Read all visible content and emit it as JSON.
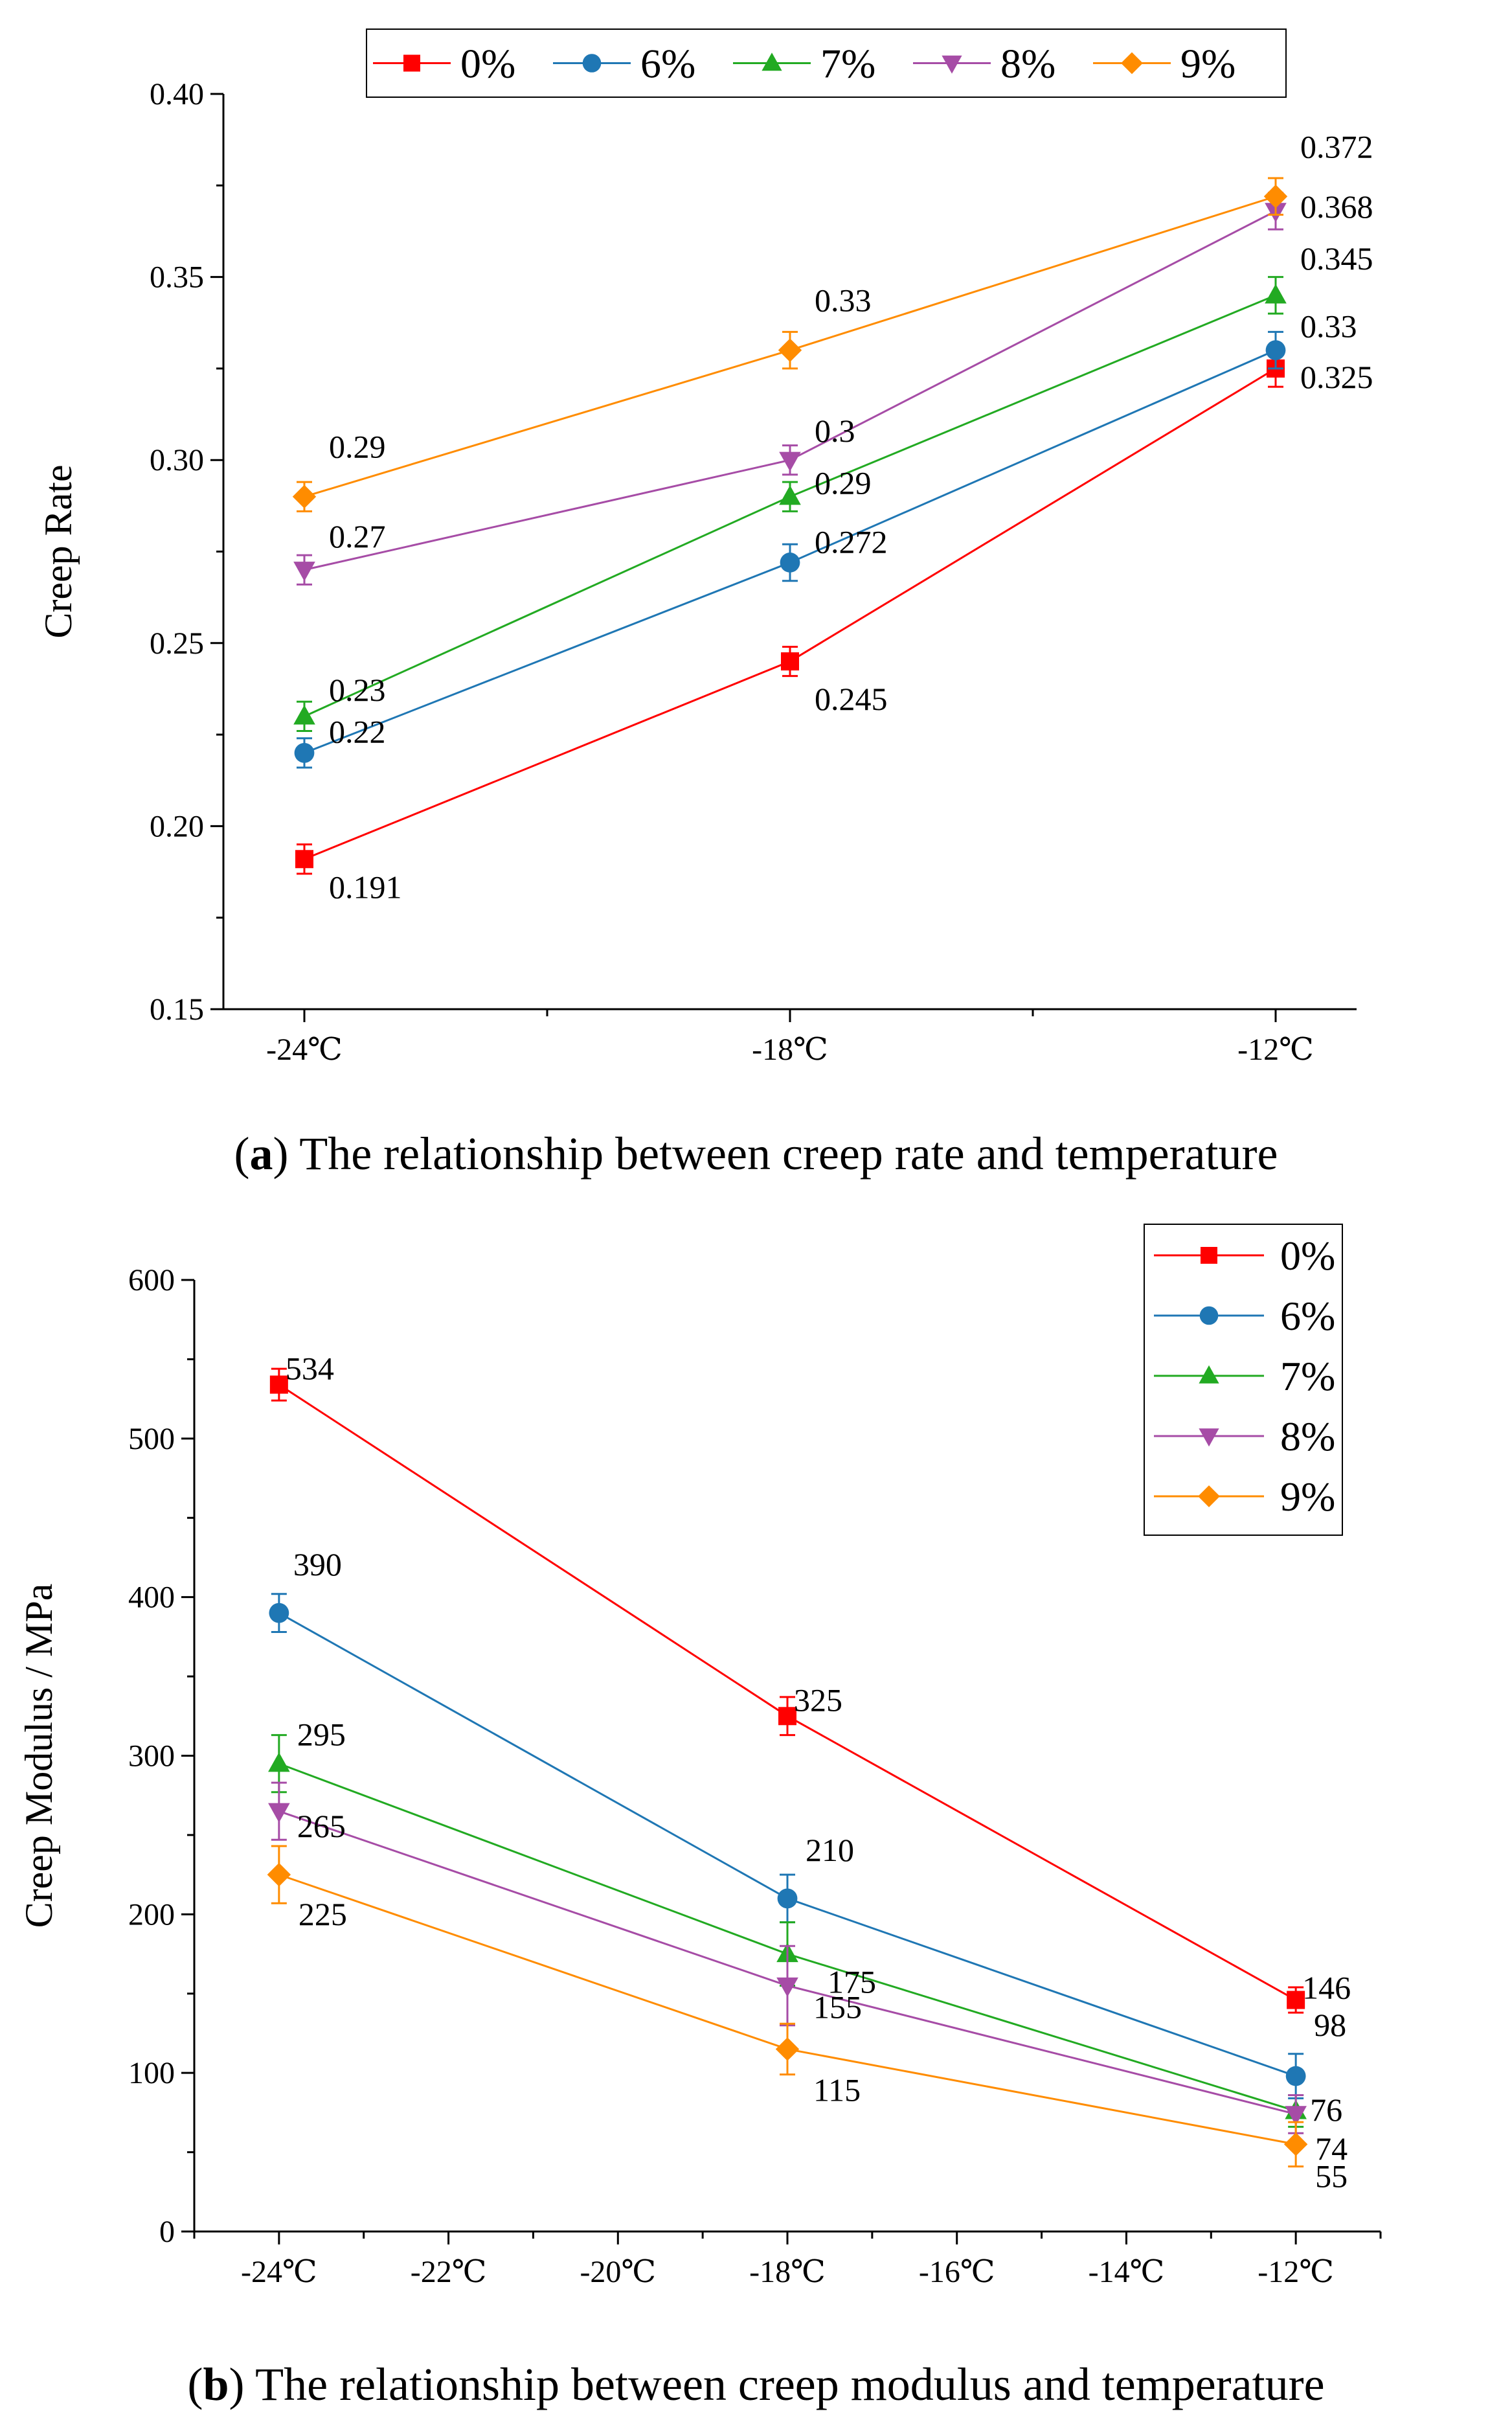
{
  "colors": {
    "0%": "#ff0000",
    "6%": "#1f77b4",
    "7%": "#22aa22",
    "8%": "#a64ca6",
    "9%": "#ff8c00"
  },
  "chart_data": [
    {
      "type": "line",
      "id": "a",
      "title": "",
      "ylabel": "Creep Rate",
      "xlabel": "",
      "categories": [
        "-24℃",
        "-18℃",
        "-12℃"
      ],
      "x": [
        -24,
        -18,
        -12
      ],
      "xlim": [
        -25,
        -11
      ],
      "xticks": [
        -24,
        -18,
        -12
      ],
      "ylim": [
        0.15,
        0.4
      ],
      "yticks": [
        0.15,
        0.2,
        0.25,
        0.3,
        0.35,
        0.4
      ],
      "ytick_labels": [
        "0.15",
        "0.20",
        "0.25",
        "0.30",
        "0.35",
        "0.40"
      ],
      "legend_position": "top",
      "series": [
        {
          "name": "0%",
          "marker": "square",
          "values": [
            0.191,
            0.245,
            0.325
          ],
          "labels": [
            "0.191",
            "0.245",
            "0.325"
          ],
          "err": [
            0.004,
            0.004,
            0.005
          ]
        },
        {
          "name": "6%",
          "marker": "circle",
          "values": [
            0.22,
            0.272,
            0.33
          ],
          "labels": [
            "0.22",
            "0.272",
            "0.33"
          ],
          "err": [
            0.004,
            0.005,
            0.005
          ]
        },
        {
          "name": "7%",
          "marker": "triangle-up",
          "values": [
            0.23,
            0.29,
            0.345
          ],
          "labels": [
            "0.23",
            "0.29",
            "0.345"
          ],
          "err": [
            0.004,
            0.004,
            0.005
          ]
        },
        {
          "name": "8%",
          "marker": "triangle-down",
          "values": [
            0.27,
            0.3,
            0.368
          ],
          "labels": [
            "0.27",
            "0.3",
            "0.368"
          ],
          "err": [
            0.004,
            0.004,
            0.005
          ]
        },
        {
          "name": "9%",
          "marker": "diamond",
          "values": [
            0.29,
            0.33,
            0.372
          ],
          "labels": [
            "0.29",
            "0.33",
            "0.372"
          ],
          "err": [
            0.004,
            0.005,
            0.005
          ]
        }
      ]
    },
    {
      "type": "line",
      "id": "b",
      "title": "",
      "ylabel": "Creep Modulus / MPa",
      "xlabel": "",
      "x": [
        -24,
        -18,
        -12
      ],
      "xlim": [
        -25,
        -11
      ],
      "xticks": [
        -24,
        -22,
        -20,
        -18,
        -16,
        -14,
        -12
      ],
      "xtick_labels": [
        "-24℃",
        "-22℃",
        "-20℃",
        "-18℃",
        "-16℃",
        "-14℃",
        "-12℃"
      ],
      "ylim": [
        0,
        600
      ],
      "yticks": [
        0,
        100,
        200,
        300,
        400,
        500,
        600
      ],
      "ytick_labels": [
        "0",
        "100",
        "200",
        "300",
        "400",
        "500",
        "600"
      ],
      "legend_position": "top-right",
      "series": [
        {
          "name": "0%",
          "marker": "square",
          "values": [
            534,
            325,
            146
          ],
          "labels": [
            "534",
            "325",
            "146"
          ],
          "err": [
            10,
            12,
            8
          ]
        },
        {
          "name": "6%",
          "marker": "circle",
          "values": [
            390,
            210,
            98
          ],
          "labels": [
            "390",
            "210",
            "98"
          ],
          "err": [
            12,
            15,
            14
          ]
        },
        {
          "name": "7%",
          "marker": "triangle-up",
          "values": [
            295,
            175,
            76
          ],
          "labels": [
            "295",
            "175",
            "76"
          ],
          "err": [
            18,
            20,
            10
          ]
        },
        {
          "name": "8%",
          "marker": "triangle-down",
          "values": [
            265,
            155,
            74
          ],
          "labels": [
            "265",
            "155",
            "74"
          ],
          "err": [
            18,
            25,
            12
          ]
        },
        {
          "name": "9%",
          "marker": "diamond",
          "values": [
            225,
            115,
            55
          ],
          "labels": [
            "225",
            "115",
            "55"
          ],
          "err": [
            18,
            16,
            14
          ]
        }
      ]
    }
  ],
  "captions": {
    "a_letter": "a",
    "a_text": " The relationship between creep rate and temperature",
    "b_letter": "b",
    "b_text": " The relationship between creep modulus and temperature"
  }
}
